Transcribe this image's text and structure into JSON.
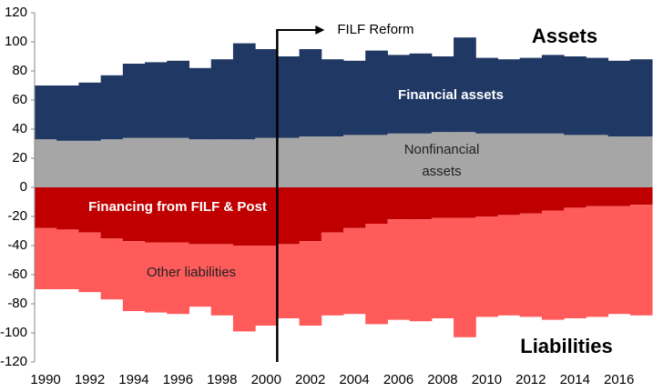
{
  "chart_data": {
    "type": "stacked-bar",
    "x": [
      1990,
      1991,
      1992,
      1993,
      1994,
      1995,
      1996,
      1997,
      1998,
      1999,
      2000,
      2001,
      2002,
      2003,
      2004,
      2005,
      2006,
      2007,
      2008,
      2009,
      2010,
      2011,
      2012,
      2013,
      2014,
      2015,
      2016,
      2017
    ],
    "series": [
      {
        "name": "Nonfinancial assets",
        "color": "#a6a6a6",
        "values": [
          33,
          32,
          32,
          33,
          34,
          34,
          34,
          33,
          33,
          33,
          34,
          34,
          35,
          35,
          36,
          36,
          37,
          37,
          38,
          38,
          37,
          37,
          37,
          37,
          36,
          36,
          35,
          35
        ]
      },
      {
        "name": "Financial assets",
        "color": "#203864",
        "values": [
          37,
          38,
          40,
          44,
          51,
          52,
          53,
          49,
          55,
          66,
          61,
          56,
          60,
          53,
          51,
          58,
          54,
          55,
          52,
          65,
          52,
          51,
          52,
          54,
          54,
          53,
          52,
          53
        ]
      },
      {
        "name": "Financing from FILF & Post",
        "color": "#c00000",
        "values": [
          -28,
          -29,
          -31,
          -35,
          -37,
          -38,
          -38,
          -39,
          -39,
          -40,
          -40,
          -39,
          -37,
          -31,
          -28,
          -25,
          -22,
          -22,
          -21,
          -21,
          -20,
          -19,
          -18,
          -16,
          -14,
          -13,
          -13,
          -12
        ]
      },
      {
        "name": "Other liabilities",
        "color": "#ff5b5b",
        "values": [
          -42,
          -41,
          -41,
          -42,
          -48,
          -48,
          -49,
          -43,
          -49,
          -59,
          -55,
          -51,
          -58,
          -57,
          -59,
          -69,
          -69,
          -70,
          -69,
          -82,
          -69,
          -69,
          -71,
          -75,
          -76,
          -76,
          -74,
          -76
        ]
      }
    ],
    "xlim": [
      1989.5,
      2017.5
    ],
    "xticks": [
      1990,
      1992,
      1994,
      1996,
      1998,
      2000,
      2002,
      2004,
      2006,
      2008,
      2010,
      2012,
      2014,
      2016
    ],
    "ylim": [
      -120,
      120
    ],
    "yticks": [
      -120,
      -100,
      -80,
      -60,
      -40,
      -20,
      0,
      20,
      40,
      60,
      80,
      100,
      120
    ],
    "annotations": [
      {
        "text": "FILF Reform",
        "x": 2000.5
      },
      {
        "text": "Assets"
      },
      {
        "text": "Liabilities"
      }
    ]
  }
}
